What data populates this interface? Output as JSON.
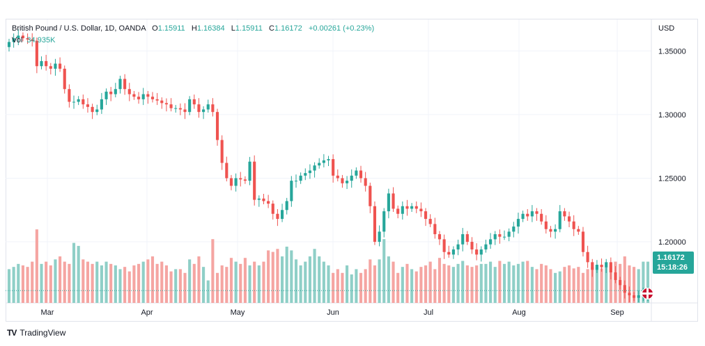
{
  "legend": {
    "symbol": "British Pound / U.S. Dollar, 1D, OANDA",
    "open_label": "O",
    "open": "1.15911",
    "high_label": "H",
    "high": "1.16384",
    "low_label": "L",
    "low": "1.15911",
    "close_label": "C",
    "close": "1.16172",
    "change": "+0.00261 (+0.23%)",
    "vol_label": "Vol",
    "vol": "34.935K"
  },
  "price_axis": {
    "currency": "USD",
    "ticks": [
      "1.35000",
      "1.30000",
      "1.25000",
      "1.20000"
    ],
    "current_price": "1.16172",
    "countdown": "15:18:26"
  },
  "brand": {
    "name": "TradingView",
    "logo": "TV"
  },
  "colors": {
    "up": "#26a69a",
    "down": "#ef5350",
    "up_vol": "#8fcfc7",
    "down_vol": "#f5a5a2",
    "grid": "#f0f3fa"
  },
  "chart_data": {
    "type": "candlestick",
    "y_axis": {
      "range": [
        1.152,
        1.3747
      ],
      "ticks": [
        1.35,
        1.3,
        1.25,
        1.2
      ]
    },
    "x_axis": {
      "ticks": [
        "Mar",
        "Apr",
        "May",
        "Jun",
        "Jul",
        "Aug",
        "Sep"
      ]
    },
    "current_price": 1.16172,
    "last_ohlc": {
      "open": 1.15911,
      "high": 1.16384,
      "low": 1.15911,
      "close": 1.16172,
      "change": 0.00261,
      "change_pct": 0.23
    },
    "volume_last": "34.935K",
    "closes": [
      1.357,
      1.36,
      1.362,
      1.36,
      1.359,
      1.358,
      1.338,
      1.342,
      1.338,
      1.336,
      1.34,
      1.336,
      1.32,
      1.31,
      1.31,
      1.312,
      1.308,
      1.306,
      1.302,
      1.304,
      1.312,
      1.318,
      1.316,
      1.32,
      1.328,
      1.32,
      1.316,
      1.314,
      1.312,
      1.316,
      1.314,
      1.312,
      1.311,
      1.309,
      1.308,
      1.305,
      1.305,
      1.304,
      1.302,
      1.312,
      1.308,
      1.302,
      1.304,
      1.308,
      1.302,
      1.28,
      1.262,
      1.25,
      1.244,
      1.25,
      1.249,
      1.248,
      1.263,
      1.233,
      1.234,
      1.232,
      1.23,
      1.222,
      1.218,
      1.225,
      1.232,
      1.248,
      1.248,
      1.252,
      1.254,
      1.256,
      1.26,
      1.262,
      1.264,
      1.265,
      1.252,
      1.25,
      1.246,
      1.248,
      1.252,
      1.256,
      1.25,
      1.244,
      1.228,
      1.2,
      1.208,
      1.224,
      1.238,
      1.226,
      1.222,
      1.228,
      1.226,
      1.228,
      1.226,
      1.224,
      1.218,
      1.214,
      1.206,
      1.202,
      1.192,
      1.19,
      1.194,
      1.198,
      1.206,
      1.2,
      1.194,
      1.19,
      1.194,
      1.198,
      1.202,
      1.206,
      1.204,
      1.204,
      1.208,
      1.212,
      1.218,
      1.222,
      1.22,
      1.224,
      1.222,
      1.216,
      1.21,
      1.208,
      1.21,
      1.224,
      1.22,
      1.216,
      1.21,
      1.208,
      1.192,
      1.184,
      1.178,
      1.182,
      1.18,
      1.184,
      1.176,
      1.17,
      1.166,
      1.16,
      1.158,
      1.156,
      1.158,
      1.159,
      1.162
    ],
    "volume_relative": [
      0.45,
      0.48,
      0.52,
      0.5,
      0.48,
      0.55,
      0.98,
      0.52,
      0.55,
      0.5,
      0.58,
      0.62,
      0.55,
      0.52,
      0.8,
      0.76,
      0.58,
      0.55,
      0.52,
      0.55,
      0.5,
      0.55,
      0.52,
      0.5,
      0.45,
      0.48,
      0.42,
      0.5,
      0.52,
      0.55,
      0.58,
      0.62,
      0.52,
      0.55,
      0.5,
      0.42,
      0.45,
      0.45,
      0.4,
      0.58,
      0.52,
      0.62,
      0.48,
      0.3,
      0.85,
      0.4,
      0.5,
      0.48,
      0.6,
      0.55,
      0.52,
      0.6,
      0.5,
      0.55,
      0.5,
      0.55,
      0.7,
      0.68,
      0.72,
      0.62,
      0.75,
      0.7,
      0.58,
      0.5,
      0.55,
      0.62,
      0.72,
      0.62,
      0.55,
      0.5,
      0.4,
      0.45,
      0.4,
      0.5,
      0.38,
      0.45,
      0.4,
      0.45,
      0.58,
      0.5,
      0.58,
      0.85,
      0.62,
      0.55,
      0.4,
      0.48,
      0.52,
      0.45,
      0.42,
      0.48,
      0.5,
      0.55,
      0.45,
      0.6,
      0.52,
      0.5,
      0.48,
      0.52,
      0.56,
      0.5,
      0.48,
      0.5,
      0.52,
      0.52,
      0.55,
      0.48,
      0.56,
      0.52,
      0.55,
      0.5,
      0.52,
      0.55,
      0.56,
      0.48,
      0.45,
      0.52,
      0.5,
      0.45,
      0.4,
      0.42,
      0.48,
      0.5,
      0.46,
      0.48,
      0.4,
      0.45,
      0.48,
      0.5,
      0.46,
      0.48,
      0.5,
      0.55,
      0.52,
      0.62,
      0.5,
      0.48,
      0.45,
      0.55,
      0.55
    ]
  }
}
